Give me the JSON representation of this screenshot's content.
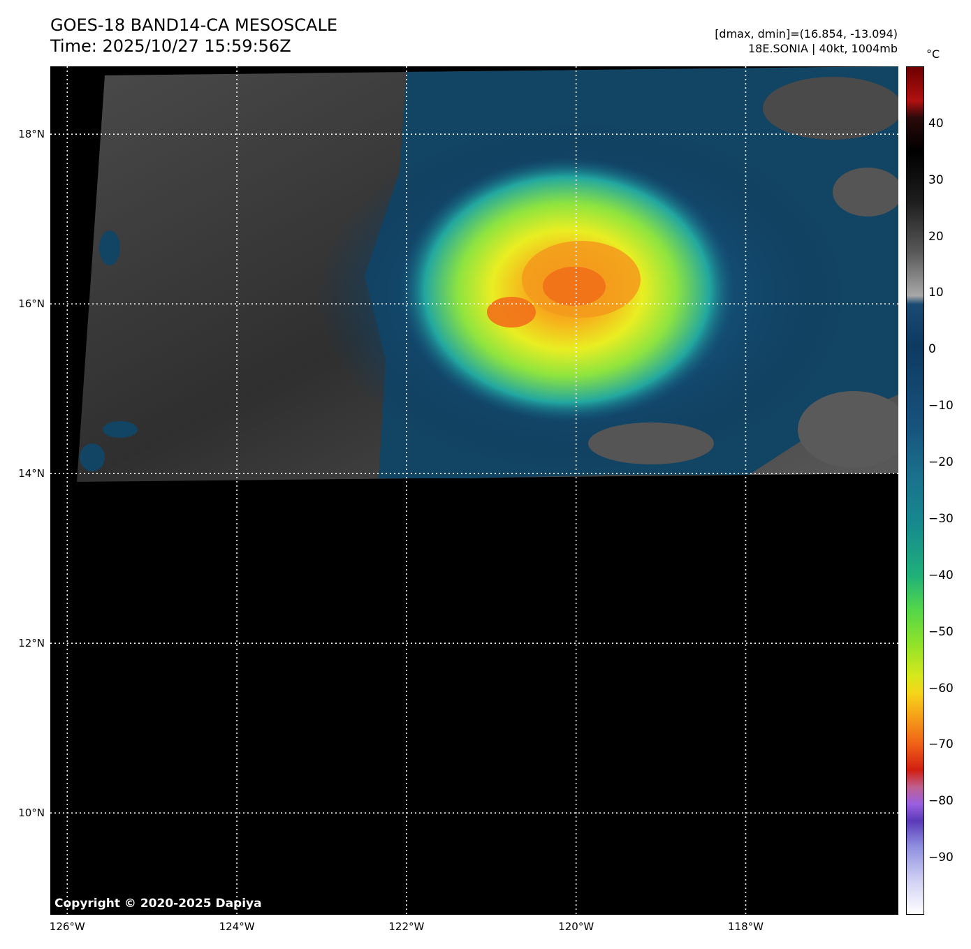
{
  "header": {
    "title_line1": "GOES-18 BAND14-CA MESOSCALE",
    "title_line2": "Time: 2025/10/27 15:59:56Z",
    "info_line1": "[dmax, dmin]=(16.854, -13.094)",
    "info_line2": "18E.SONIA | 40kt, 1004mb"
  },
  "map": {
    "copyright": "Copyright © 2020-2025 Dapiya",
    "extent": {
      "lon_min": -126.2,
      "lon_max": -116.2,
      "lat_min": 8.8,
      "lat_max": 18.8
    },
    "lat_ticks": [
      {
        "value": 18,
        "label": "18°N"
      },
      {
        "value": 16,
        "label": "16°N"
      },
      {
        "value": 14,
        "label": "14°N"
      },
      {
        "value": 12,
        "label": "12°N"
      },
      {
        "value": 10,
        "label": "10°N"
      }
    ],
    "lon_ticks": [
      {
        "value": -126,
        "label": "126°W"
      },
      {
        "value": -124,
        "label": "124°W"
      },
      {
        "value": -122,
        "label": "122°W"
      },
      {
        "value": -120,
        "label": "120°W"
      },
      {
        "value": -118,
        "label": "118°W"
      }
    ],
    "storm_center": {
      "lat": 16.4,
      "lon": -120.0
    }
  },
  "colorbar": {
    "unit": "°C",
    "min": -100,
    "max": 50,
    "ticks": [
      {
        "value": 40,
        "label": "40"
      },
      {
        "value": 30,
        "label": "30"
      },
      {
        "value": 20,
        "label": "20"
      },
      {
        "value": 10,
        "label": "10"
      },
      {
        "value": 0,
        "label": "0"
      },
      {
        "value": -10,
        "label": "−10"
      },
      {
        "value": -20,
        "label": "−20"
      },
      {
        "value": -30,
        "label": "−30"
      },
      {
        "value": -40,
        "label": "−40"
      },
      {
        "value": -50,
        "label": "−50"
      },
      {
        "value": -60,
        "label": "−60"
      },
      {
        "value": -70,
        "label": "−70"
      },
      {
        "value": -80,
        "label": "−80"
      },
      {
        "value": -90,
        "label": "−90"
      }
    ]
  },
  "colors": {
    "background": "#000000",
    "grid": "#ffffff",
    "clear_sky_dark": "#2e2e2e",
    "clear_sky_light": "#5a5a5a",
    "cloud_blue": "#0e3f66",
    "cloud_cyan": "#1a8fa0",
    "cold_green": "#7ee24a",
    "cold_yellow": "#f2e51e",
    "cold_orange": "#f47a1a"
  }
}
